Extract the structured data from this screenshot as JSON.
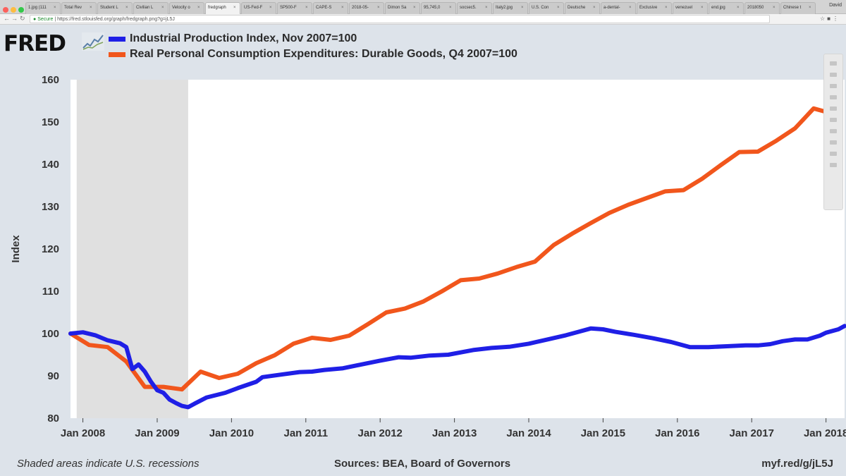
{
  "browser": {
    "tabs": [
      {
        "label": "1.jpg (111"
      },
      {
        "label": "Total Rev"
      },
      {
        "label": "Student L"
      },
      {
        "label": "Civilian L"
      },
      {
        "label": "Velocity o"
      },
      {
        "label": "fredgraph",
        "active": true
      },
      {
        "label": "US-Fed-F"
      },
      {
        "label": "SP500-F"
      },
      {
        "label": "CAPE-S"
      },
      {
        "label": "2018-05-"
      },
      {
        "label": "Dimon Sa"
      },
      {
        "label": "95,745,0"
      },
      {
        "label": "socsec5."
      },
      {
        "label": "Italy2.jpg"
      },
      {
        "label": "U.S. Con"
      },
      {
        "label": "Deutsche"
      },
      {
        "label": "a-dental-"
      },
      {
        "label": "Exclusive"
      },
      {
        "label": "venezuel"
      },
      {
        "label": "end.jpg"
      },
      {
        "label": "2018050"
      },
      {
        "label": "Chinese t"
      }
    ],
    "profile": "David",
    "secure_label": "Secure",
    "url": "https://fred.stlouisfed.org/graph/fredgraph.png?g=jL5J"
  },
  "logo": {
    "text": "FRED"
  },
  "colors": {
    "series1": "#1f1fe6",
    "series2": "#f1561c",
    "recession": "#e0e0e0",
    "plot_bg": "#ffffff",
    "page_bg": "#dde3ea"
  },
  "footer": {
    "note": "Shaded areas indicate U.S. recessions",
    "sources": "Sources: BEA, Board of Governors",
    "link": "myf.red/g/jL5J"
  },
  "chart_data": {
    "type": "line",
    "title": "",
    "xlabel": "",
    "ylabel": "Index",
    "ylim": [
      80,
      160
    ],
    "xlim": [
      "2007-11",
      "2018-04"
    ],
    "yticks": [
      80,
      90,
      100,
      110,
      120,
      130,
      140,
      150,
      160
    ],
    "xticks": [
      "Jan 2008",
      "Jan 2009",
      "Jan 2010",
      "Jan 2011",
      "Jan 2012",
      "Jan 2013",
      "Jan 2014",
      "Jan 2015",
      "Jan 2016",
      "Jan 2017",
      "Jan 2018"
    ],
    "grid": false,
    "legend_position": "top-left",
    "recessions": [
      {
        "start": "2007-12",
        "end": "2009-06"
      }
    ],
    "series": [
      {
        "name": "Industrial Production Index, Nov 2007=100",
        "color": "#1f1fe6",
        "points": [
          [
            "2007-11",
            100.0
          ],
          [
            "2008-01",
            100.3
          ],
          [
            "2008-03",
            99.6
          ],
          [
            "2008-05",
            98.4
          ],
          [
            "2008-07",
            97.7
          ],
          [
            "2008-08",
            96.8
          ],
          [
            "2008-09",
            91.6
          ],
          [
            "2008-10",
            92.7
          ],
          [
            "2008-11",
            91.0
          ],
          [
            "2008-12",
            88.6
          ],
          [
            "2009-01",
            86.6
          ],
          [
            "2009-02",
            86.0
          ],
          [
            "2009-03",
            84.4
          ],
          [
            "2009-04",
            83.6
          ],
          [
            "2009-05",
            82.9
          ],
          [
            "2009-06",
            82.6
          ],
          [
            "2009-07",
            83.4
          ],
          [
            "2009-09",
            84.9
          ],
          [
            "2009-12",
            86.0
          ],
          [
            "2010-02",
            87.1
          ],
          [
            "2010-05",
            88.6
          ],
          [
            "2010-06",
            89.7
          ],
          [
            "2010-09",
            90.3
          ],
          [
            "2010-12",
            90.9
          ],
          [
            "2011-02",
            91.0
          ],
          [
            "2011-04",
            91.4
          ],
          [
            "2011-07",
            91.8
          ],
          [
            "2011-10",
            92.7
          ],
          [
            "2012-01",
            93.6
          ],
          [
            "2012-04",
            94.4
          ],
          [
            "2012-06",
            94.3
          ],
          [
            "2012-09",
            94.8
          ],
          [
            "2012-12",
            95.0
          ],
          [
            "2013-04",
            96.1
          ],
          [
            "2013-07",
            96.6
          ],
          [
            "2013-10",
            96.9
          ],
          [
            "2014-01",
            97.6
          ],
          [
            "2014-04",
            98.6
          ],
          [
            "2014-07",
            99.6
          ],
          [
            "2014-09",
            100.4
          ],
          [
            "2014-11",
            101.2
          ],
          [
            "2015-01",
            101.0
          ],
          [
            "2015-03",
            100.4
          ],
          [
            "2015-06",
            99.7
          ],
          [
            "2015-09",
            98.9
          ],
          [
            "2015-12",
            98.0
          ],
          [
            "2016-01",
            97.6
          ],
          [
            "2016-03",
            96.8
          ],
          [
            "2016-06",
            96.8
          ],
          [
            "2016-09",
            97.0
          ],
          [
            "2016-12",
            97.2
          ],
          [
            "2017-02",
            97.2
          ],
          [
            "2017-04",
            97.5
          ],
          [
            "2017-06",
            98.2
          ],
          [
            "2017-08",
            98.6
          ],
          [
            "2017-10",
            98.6
          ],
          [
            "2017-12",
            99.5
          ],
          [
            "2018-01",
            100.2
          ],
          [
            "2018-03",
            101.0
          ],
          [
            "2018-04",
            101.8
          ]
        ]
      },
      {
        "name": "Real Personal Consumption Expenditures: Durable Goods, Q4 2007=100",
        "color": "#f1561c",
        "points": [
          [
            "2007-11",
            100.0
          ],
          [
            "2008-02",
            97.3
          ],
          [
            "2008-05",
            96.8
          ],
          [
            "2008-08",
            93.4
          ],
          [
            "2008-11",
            87.4
          ],
          [
            "2009-02",
            87.4
          ],
          [
            "2009-05",
            86.8
          ],
          [
            "2009-08",
            91.0
          ],
          [
            "2009-11",
            89.5
          ],
          [
            "2010-02",
            90.5
          ],
          [
            "2010-05",
            93.0
          ],
          [
            "2010-08",
            94.9
          ],
          [
            "2010-11",
            97.6
          ],
          [
            "2011-02",
            99.0
          ],
          [
            "2011-05",
            98.5
          ],
          [
            "2011-08",
            99.5
          ],
          [
            "2011-11",
            102.2
          ],
          [
            "2012-02",
            105.0
          ],
          [
            "2012-05",
            105.9
          ],
          [
            "2012-08",
            107.6
          ],
          [
            "2012-11",
            110.0
          ],
          [
            "2013-02",
            112.6
          ],
          [
            "2013-05",
            113.0
          ],
          [
            "2013-08",
            114.2
          ],
          [
            "2013-11",
            115.7
          ],
          [
            "2014-02",
            117.0
          ],
          [
            "2014-05",
            120.9
          ],
          [
            "2014-08",
            123.6
          ],
          [
            "2014-11",
            126.1
          ],
          [
            "2015-02",
            128.5
          ],
          [
            "2015-05",
            130.4
          ],
          [
            "2015-08",
            132.0
          ],
          [
            "2015-11",
            133.6
          ],
          [
            "2016-02",
            133.9
          ],
          [
            "2016-05",
            136.6
          ],
          [
            "2016-08",
            139.8
          ],
          [
            "2016-11",
            142.9
          ],
          [
            "2017-02",
            143.0
          ],
          [
            "2017-05",
            145.6
          ],
          [
            "2017-08",
            148.5
          ],
          [
            "2017-11",
            153.2
          ],
          [
            "2018-02",
            152.0
          ]
        ]
      }
    ]
  }
}
